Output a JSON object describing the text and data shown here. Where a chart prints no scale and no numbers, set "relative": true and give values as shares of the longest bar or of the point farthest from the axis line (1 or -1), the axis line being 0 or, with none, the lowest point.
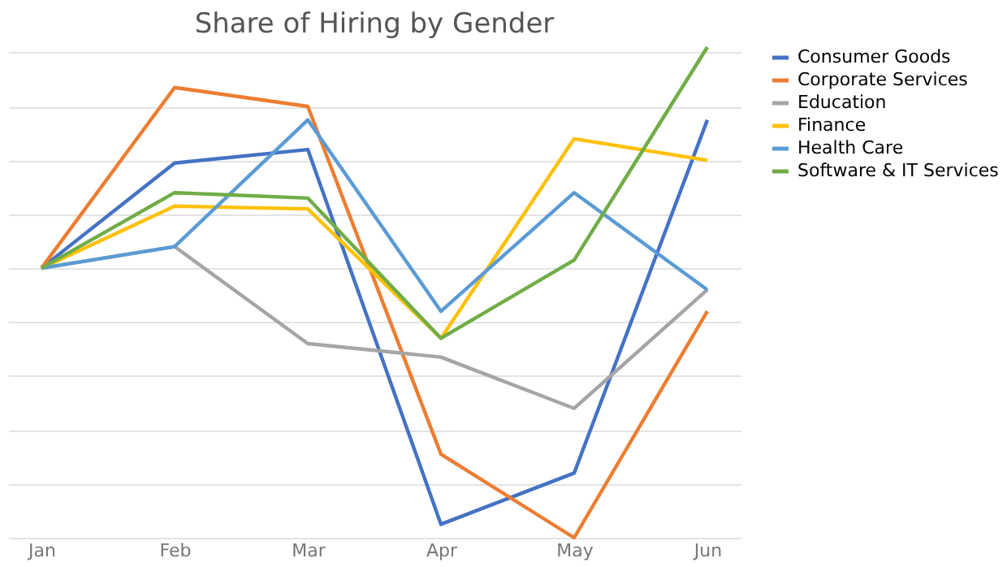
{
  "chart_data": {
    "type": "line",
    "title": "Share of Hiring by Gender",
    "relative": true,
    "grid": "y",
    "legend": "right",
    "marker": "none",
    "line_style": "solid",
    "categories": [
      "Jan",
      "Feb",
      "Mar",
      "Apr",
      "May",
      "Jun"
    ],
    "series": [
      {
        "name": "Consumer Goods",
        "color": "#4472c4",
        "values": [
          0,
          0.39,
          0.44,
          -0.95,
          -0.76,
          0.55
        ]
      },
      {
        "name": "Corporate Services",
        "color": "#ed7d31",
        "values": [
          0,
          0.67,
          0.6,
          -0.69,
          -1,
          -0.16
        ]
      },
      {
        "name": "Education",
        "color": "#a5a5a5",
        "values": [
          0,
          0.08,
          -0.28,
          -0.33,
          -0.52,
          -0.08
        ]
      },
      {
        "name": "Finance",
        "color": "#ffc000",
        "values": [
          0,
          0.23,
          0.22,
          -0.26,
          0.48,
          0.4
        ]
      },
      {
        "name": "Health Care",
        "color": "#5b9bd5",
        "values": [
          0,
          0.08,
          0.55,
          -0.16,
          0.28,
          -0.08
        ]
      },
      {
        "name": "Software & IT Services",
        "color": "#70ad47",
        "values": [
          0,
          0.28,
          0.26,
          -0.26,
          0.03,
          0.82
        ]
      }
    ]
  }
}
